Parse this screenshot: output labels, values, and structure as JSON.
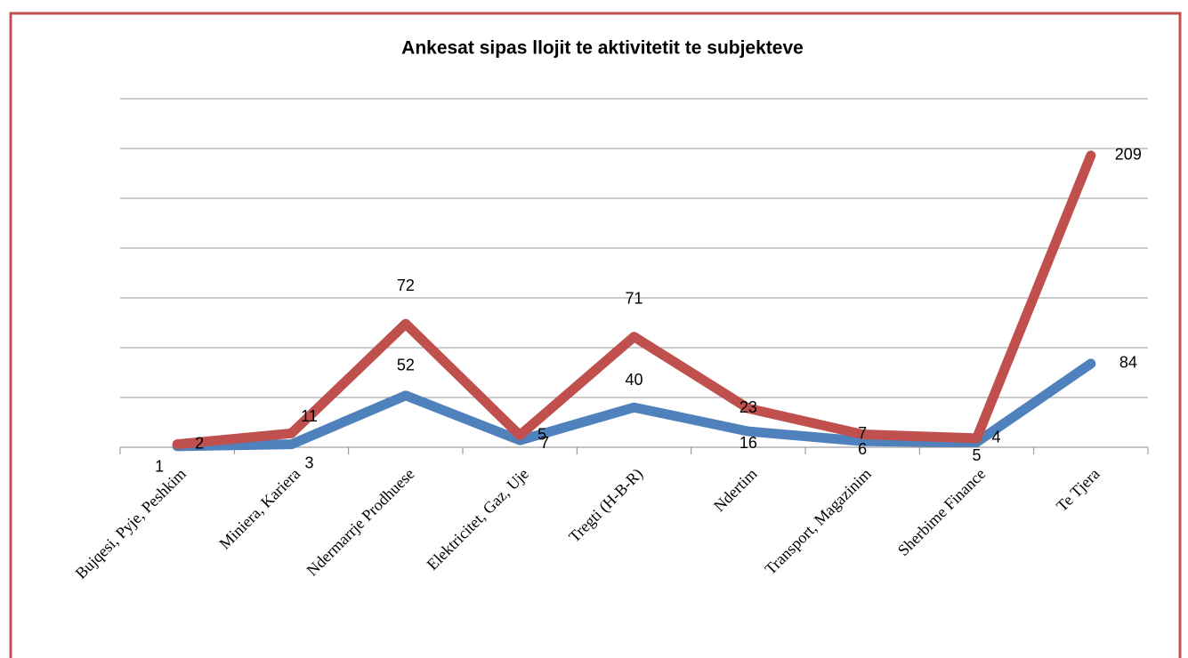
{
  "chart_data": {
    "type": "line",
    "stacked": true,
    "title": "Ankesat sipas llojit te aktivitetit te subjekteve",
    "categories": [
      "Bujqesi, Pyje, Peshkim",
      "Miniera, Kariera",
      "Ndermarrje Prodhuese",
      "Elektricitet, Gaz, Uje",
      "Tregti (H-B-R)",
      "Ndertim",
      "Transport, Magazinim",
      "Sherbime Finance",
      "Te Tjera"
    ],
    "series": [
      {
        "color": "#4f81bd",
        "values": [
          1,
          3,
          52,
          7,
          40,
          16,
          6,
          5,
          84
        ]
      },
      {
        "color": "#c0504d",
        "values": [
          2,
          11,
          72,
          5,
          71,
          23,
          7,
          4,
          209
        ]
      }
    ],
    "ylim": [
      0,
      350
    ],
    "yticks": [
      0,
      50,
      100,
      150,
      200,
      250,
      300,
      350
    ],
    "grid": true
  }
}
